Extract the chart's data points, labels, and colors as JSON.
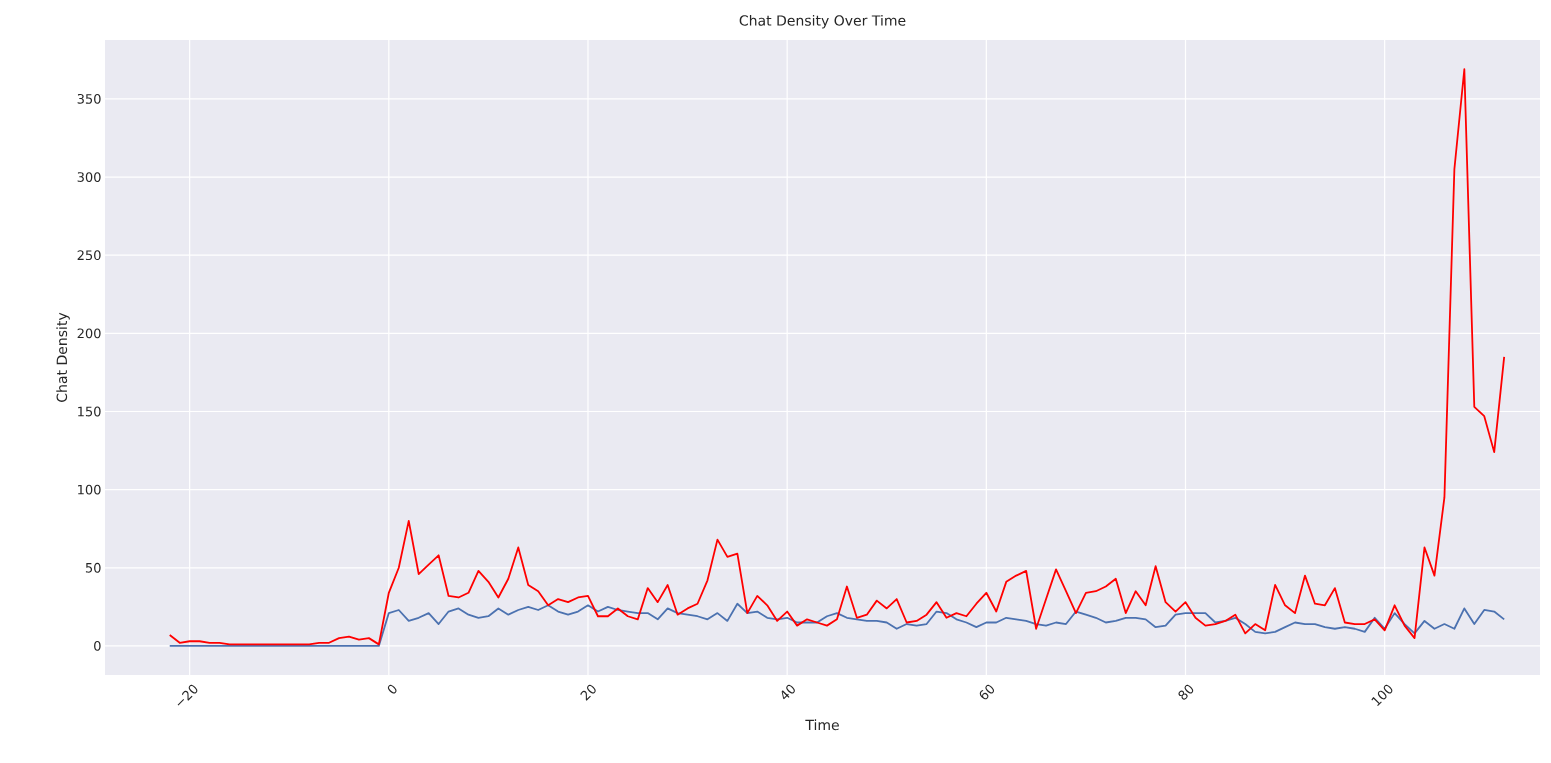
{
  "chart_data": {
    "type": "line",
    "title": "Chat Density Over Time",
    "xlabel": "Time",
    "ylabel": "Chat Density",
    "x": [
      -22,
      -21,
      -20,
      -19,
      -18,
      -17,
      -16,
      -15,
      -14,
      -13,
      -12,
      -11,
      -10,
      -9,
      -8,
      -7,
      -6,
      -5,
      -4,
      -3,
      -2,
      -1,
      0,
      1,
      2,
      3,
      4,
      5,
      6,
      7,
      8,
      9,
      10,
      11,
      12,
      13,
      14,
      15,
      16,
      17,
      18,
      19,
      20,
      21,
      22,
      23,
      24,
      25,
      26,
      27,
      28,
      29,
      30,
      31,
      32,
      33,
      34,
      35,
      36,
      37,
      38,
      39,
      40,
      41,
      42,
      43,
      44,
      45,
      46,
      47,
      48,
      49,
      50,
      51,
      52,
      53,
      54,
      55,
      56,
      57,
      58,
      59,
      60,
      61,
      62,
      63,
      64,
      65,
      66,
      67,
      68,
      69,
      70,
      71,
      72,
      73,
      74,
      75,
      76,
      77,
      78,
      79,
      80,
      81,
      82,
      83,
      84,
      85,
      86,
      87,
      88,
      89,
      90,
      91,
      92,
      93,
      94,
      95,
      96,
      97,
      98,
      99,
      100,
      101,
      102,
      103,
      104,
      105,
      106,
      107,
      108,
      109,
      110,
      111,
      112
    ],
    "series": [
      {
        "color": "#4c72b0",
        "values": [
          0,
          0,
          0,
          0,
          0,
          0,
          0,
          0,
          0,
          0,
          0,
          0,
          0,
          0,
          0,
          0,
          0,
          0,
          0,
          0,
          0,
          0,
          21,
          23,
          16,
          18,
          21,
          14,
          22,
          24,
          20,
          18,
          19,
          24,
          20,
          23,
          25,
          23,
          26,
          22,
          20,
          22,
          26,
          22,
          25,
          23,
          22,
          21,
          21,
          17,
          24,
          21,
          20,
          19,
          17,
          21,
          16,
          27,
          21,
          22,
          18,
          17,
          18,
          15,
          15,
          15,
          19,
          21,
          18,
          17,
          16,
          16,
          15,
          11,
          14,
          13,
          14,
          22,
          21,
          17,
          15,
          12,
          15,
          15,
          18,
          17,
          16,
          14,
          13,
          15,
          14,
          22,
          20,
          18,
          15,
          16,
          18,
          18,
          17,
          12,
          13,
          20,
          21,
          21,
          21,
          15,
          16,
          18,
          14,
          9,
          8,
          9,
          12,
          15,
          14,
          14,
          12,
          11,
          12,
          11,
          9,
          18,
          11,
          21,
          14,
          8,
          16,
          11,
          14,
          11,
          24,
          14,
          23,
          22,
          17
        ]
      },
      {
        "color": "#ff0000",
        "values": [
          7,
          2,
          3,
          3,
          2,
          2,
          1,
          1,
          1,
          1,
          1,
          1,
          1,
          1,
          1,
          2,
          2,
          5,
          6,
          4,
          5,
          1,
          34,
          50,
          80,
          46,
          52,
          58,
          32,
          31,
          34,
          48,
          41,
          31,
          43,
          63,
          39,
          35,
          26,
          30,
          28,
          31,
          32,
          19,
          19,
          24,
          19,
          17,
          37,
          28,
          39,
          20,
          24,
          27,
          42,
          68,
          57,
          59,
          21,
          32,
          26,
          16,
          22,
          13,
          17,
          15,
          13,
          17,
          38,
          18,
          20,
          29,
          24,
          30,
          15,
          16,
          20,
          28,
          18,
          21,
          19,
          27,
          34,
          22,
          41,
          45,
          48,
          11,
          30,
          49,
          35,
          21,
          34,
          35,
          38,
          43,
          21,
          35,
          26,
          51,
          28,
          22,
          28,
          18,
          13,
          14,
          16,
          20,
          8,
          14,
          10,
          39,
          26,
          21,
          45,
          27,
          26,
          37,
          15,
          14,
          14,
          17,
          10,
          26,
          13,
          5,
          63,
          45,
          95,
          305,
          369,
          153,
          147,
          124,
          185
        ]
      }
    ],
    "xlim": [
      -28.5,
      115.6
    ],
    "ylim": [
      -18.6,
      387.7
    ],
    "xticks": [
      {
        "value": -20,
        "label": "−20"
      },
      0,
      20,
      40,
      60,
      80,
      100
    ],
    "yticks": [
      0,
      50,
      100,
      150,
      200,
      250,
      300,
      350
    ],
    "grid": true
  }
}
